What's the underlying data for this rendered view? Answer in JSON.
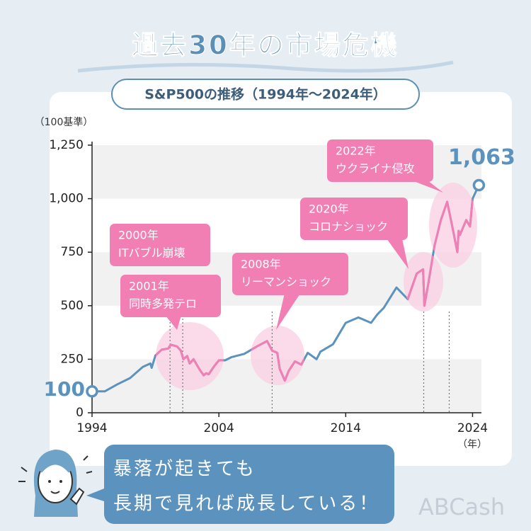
{
  "chart_data": {
    "type": "line",
    "title": "過去30年の市場危機",
    "subtitle": "S&P500の推移（1994年〜2024年）",
    "y_axis_label": "（100基準）",
    "x_axis_label": "（年）",
    "xlim": [
      1994,
      2024.7
    ],
    "xticks": [
      1994,
      2004,
      2014,
      2024
    ],
    "ylim": [
      0,
      1250
    ],
    "yticks": [
      0,
      250,
      500,
      750,
      {
        "value": 1000,
        "label": "1,000"
      },
      {
        "value": 1250,
        "label": "1,250"
      }
    ],
    "color": "#5b93be",
    "highlight_color": "#f27fb3",
    "x": [
      1994.0,
      1995.0,
      1996.0,
      1997.0,
      1998.0,
      1998.6,
      1998.7,
      1999.0,
      1999.5,
      2000.0,
      2000.2,
      2000.7,
      2001.0,
      2001.2,
      2001.5,
      2001.7,
      2002.0,
      2002.5,
      2002.8,
      2003.0,
      2003.2,
      2003.6,
      2004.0,
      2004.5,
      2005.0,
      2006.0,
      2007.0,
      2007.8,
      2008.2,
      2008.6,
      2008.8,
      2009.2,
      2009.5,
      2010.0,
      2010.5,
      2011.0,
      2011.7,
      2012.0,
      2013.0,
      2014.0,
      2015.0,
      2016.0,
      2016.5,
      2017.0,
      2018.0,
      2018.9,
      2019.0,
      2019.6,
      2020.1,
      2020.2,
      2020.5,
      2021.0,
      2021.5,
      2022.0,
      2022.4,
      2022.8,
      2022.9,
      2023.0,
      2023.5,
      2023.8,
      2024.0,
      2024.5
    ],
    "values": [
      100,
      100,
      133,
      162,
      214,
      230,
      210,
      268,
      295,
      300,
      318,
      310,
      290,
      250,
      265,
      230,
      250,
      200,
      175,
      185,
      180,
      215,
      245,
      245,
      260,
      275,
      310,
      335,
      290,
      280,
      205,
      150,
      195,
      240,
      225,
      280,
      250,
      285,
      320,
      420,
      445,
      420,
      460,
      490,
      585,
      530,
      550,
      650,
      670,
      500,
      600,
      780,
      900,
      985,
      870,
      750,
      850,
      830,
      900,
      870,
      1000,
      1063
    ],
    "value_labels": [
      "100",
      null,
      null,
      null,
      null,
      null,
      null,
      null,
      null,
      null,
      null,
      null,
      null,
      null,
      null,
      null,
      null,
      null,
      null,
      null,
      null,
      null,
      null,
      null,
      null,
      null,
      null,
      null,
      null,
      null,
      null,
      null,
      null,
      null,
      null,
      null,
      null,
      null,
      null,
      null,
      null,
      null,
      null,
      null,
      null,
      null,
      null,
      null,
      null,
      null,
      null,
      null,
      null,
      null,
      null,
      null,
      null,
      null,
      null,
      null,
      null,
      "1,063"
    ],
    "annotations": [
      {
        "lines": [
          "2000年",
          "ITバブル崩壊"
        ],
        "x": 2000.15
      },
      {
        "lines": [
          "2001年",
          "同時多発テロ"
        ],
        "x": 2001.15
      },
      {
        "lines": [
          "2008年",
          "リーマンショック"
        ],
        "x": 2008.2
      },
      {
        "lines": [
          "2020年",
          "コロナショック"
        ],
        "x": 2020.15
      },
      {
        "lines": [
          "2022年",
          "ウクライナ侵攻"
        ],
        "x": 2022.16
      }
    ]
  },
  "message": [
    "暴落が起きても",
    "長期で見れば成長している！"
  ],
  "logo": "ABCash"
}
